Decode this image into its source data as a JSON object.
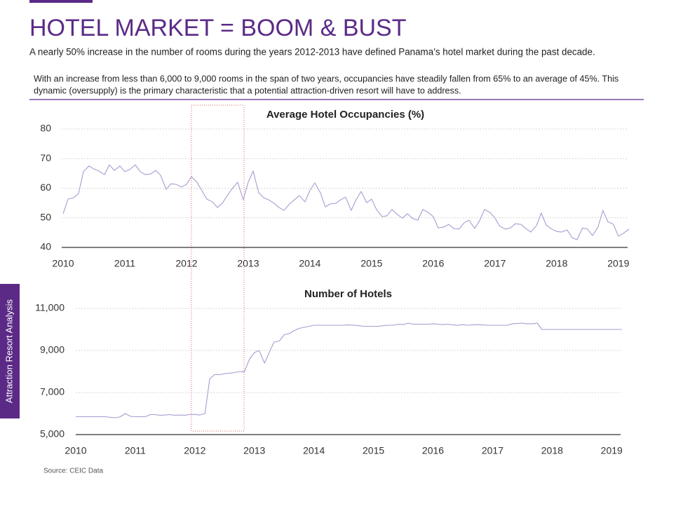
{
  "header": {
    "title": "HOTEL MARKET = BOOM & BUST",
    "subtitle": "A nearly 50% increase in the number of rooms during the years 2012-2013 have defined Panama’s hotel market during the past decade."
  },
  "body_text": [
    "With an increase from less than 6,000 to 9,000 rooms in the span of two years, occupancies have steadily fallen from 65% to an average of 45%.  This",
    "dynamic (oversupply) is the primary characteristic that a potential attraction-driven resort will have to address."
  ],
  "side_tab": "Attraction Resort Analysis",
  "source": "Source: CEIC Data",
  "chart_data": [
    {
      "type": "line",
      "title": "Average Hotel Occupancies (%)",
      "color": "#a99bd0",
      "grid": true,
      "xlim": [
        2010,
        2019.15
      ],
      "xticks": [
        2010,
        2011,
        2012,
        2013,
        2014,
        2015,
        2016,
        2017,
        2018,
        2019
      ],
      "ylim": [
        40,
        80
      ],
      "yticks": [
        40,
        50,
        60,
        70,
        80
      ],
      "x": [
        2010,
        2010.08,
        2010.17,
        2010.25,
        2010.33,
        2010.42,
        2010.5,
        2010.58,
        2010.67,
        2010.75,
        2010.83,
        2010.92,
        2011,
        2011.08,
        2011.17,
        2011.25,
        2011.33,
        2011.42,
        2011.5,
        2011.58,
        2011.67,
        2011.75,
        2011.83,
        2011.92,
        2012,
        2012.08,
        2012.17,
        2012.25,
        2012.33,
        2012.42,
        2012.5,
        2012.58,
        2012.67,
        2012.75,
        2012.83,
        2012.92,
        2013,
        2013.08,
        2013.17,
        2013.25,
        2013.33,
        2013.42,
        2013.5,
        2013.58,
        2013.67,
        2013.75,
        2013.83,
        2013.92,
        2014,
        2014.08,
        2014.17,
        2014.25,
        2014.33,
        2014.42,
        2014.5,
        2014.58,
        2014.67,
        2014.75,
        2014.83,
        2014.92,
        2015,
        2015.08,
        2015.17,
        2015.25,
        2015.33,
        2015.42,
        2015.5,
        2015.58,
        2015.67,
        2015.75,
        2015.83,
        2015.92,
        2016,
        2016.08,
        2016.17,
        2016.25,
        2016.33,
        2016.42,
        2016.5,
        2016.58,
        2016.67,
        2016.75,
        2016.83,
        2016.92,
        2017,
        2017.08,
        2017.17,
        2017.25,
        2017.33,
        2017.42,
        2017.5,
        2017.58,
        2017.67,
        2017.75,
        2017.83,
        2017.92,
        2018,
        2018.08,
        2018.17,
        2018.25,
        2018.33,
        2018.42,
        2018.5,
        2018.58,
        2018.67,
        2018.75,
        2018.83,
        2018.92,
        2019,
        2019.08,
        2019.17
      ],
      "values": [
        51.4,
        56.3,
        56.8,
        58.2,
        65.6,
        67.5,
        66.5,
        65.8,
        64.6,
        67.9,
        66.0,
        67.5,
        65.6,
        66.3,
        67.9,
        65.6,
        64.6,
        64.8,
        66.0,
        64.4,
        59.6,
        61.5,
        61.3,
        60.4,
        61.3,
        63.9,
        62.0,
        59.2,
        56.3,
        55.4,
        53.5,
        54.9,
        57.8,
        60.1,
        62.0,
        56.1,
        62.0,
        65.8,
        58.5,
        56.8,
        56.1,
        54.9,
        53.5,
        52.5,
        54.7,
        56.1,
        57.5,
        55.4,
        59.2,
        61.8,
        58.5,
        53.7,
        54.7,
        54.9,
        56.1,
        57.0,
        52.5,
        56.1,
        58.9,
        55.1,
        56.3,
        52.8,
        50.4,
        50.7,
        52.8,
        51.1,
        49.9,
        51.4,
        49.7,
        49.2,
        52.8,
        51.8,
        50.4,
        46.6,
        46.9,
        47.8,
        46.4,
        46.2,
        48.3,
        49.2,
        46.4,
        49.0,
        52.8,
        51.8,
        49.9,
        47.1,
        46.2,
        46.6,
        48.0,
        47.8,
        46.4,
        45.2,
        47.3,
        51.6,
        47.6,
        46.2,
        45.4,
        45.2,
        45.9,
        43.3,
        42.6,
        46.6,
        46.2,
        44.0,
        46.9,
        52.5,
        48.7,
        47.8,
        43.8,
        44.7,
        46.2
      ]
    },
    {
      "type": "line",
      "title": "Number of Hotels",
      "color": "#a99bd0",
      "grid": true,
      "xlim": [
        2010,
        2019.15
      ],
      "xticks": [
        2010,
        2011,
        2012,
        2013,
        2014,
        2015,
        2016,
        2017,
        2018,
        2019
      ],
      "ylim": [
        5000,
        11000
      ],
      "yticks": [
        {
          "value": 5000,
          "label": "5,000"
        },
        {
          "value": 7000,
          "label": "7,000"
        },
        {
          "value": 9000,
          "label": "9,000"
        },
        {
          "value": 11000,
          "label": "11,000"
        }
      ],
      "x": [
        2010,
        2010.08,
        2010.17,
        2010.25,
        2010.33,
        2010.42,
        2010.5,
        2010.58,
        2010.67,
        2010.75,
        2010.83,
        2010.92,
        2011,
        2011.08,
        2011.17,
        2011.25,
        2011.33,
        2011.42,
        2011.5,
        2011.58,
        2011.67,
        2011.75,
        2011.83,
        2011.92,
        2012,
        2012.08,
        2012.17,
        2012.25,
        2012.33,
        2012.42,
        2012.5,
        2012.58,
        2012.67,
        2012.75,
        2012.83,
        2012.92,
        2013,
        2013.08,
        2013.17,
        2013.25,
        2013.33,
        2013.42,
        2013.5,
        2013.58,
        2013.67,
        2013.75,
        2013.83,
        2013.92,
        2014,
        2014.08,
        2014.17,
        2014.25,
        2014.33,
        2014.42,
        2014.5,
        2014.58,
        2014.67,
        2014.75,
        2014.83,
        2014.92,
        2015,
        2015.08,
        2015.17,
        2015.25,
        2015.33,
        2015.42,
        2015.5,
        2015.58,
        2015.67,
        2015.75,
        2015.83,
        2015.92,
        2016,
        2016.08,
        2016.17,
        2016.25,
        2016.33,
        2016.42,
        2016.5,
        2016.58,
        2016.67,
        2016.75,
        2016.83,
        2016.92,
        2017,
        2017.08,
        2017.17,
        2017.25,
        2017.33,
        2017.42,
        2017.5,
        2017.58,
        2017.67,
        2017.75,
        2017.83,
        2017.92,
        2018,
        2018.08,
        2018.17,
        2018.25,
        2018.33,
        2018.42,
        2018.5,
        2018.58,
        2018.67,
        2018.75,
        2018.83,
        2018.92,
        2019,
        2019.08,
        2019.17
      ],
      "values": [
        5850,
        5850,
        5850,
        5850,
        5850,
        5850,
        5850,
        5820,
        5800,
        5850,
        6000,
        5870,
        5850,
        5850,
        5850,
        5950,
        5950,
        5920,
        5930,
        5950,
        5920,
        5930,
        5920,
        5960,
        5960,
        5930,
        6000,
        7650,
        7850,
        7850,
        7900,
        7920,
        7950,
        8000,
        7980,
        8600,
        8900,
        9000,
        8400,
        8900,
        9400,
        9450,
        9750,
        9800,
        9950,
        10050,
        10100,
        10150,
        10200,
        10200,
        10200,
        10200,
        10200,
        10200,
        10200,
        10220,
        10200,
        10180,
        10150,
        10150,
        10150,
        10150,
        10180,
        10200,
        10200,
        10250,
        10230,
        10300,
        10250,
        10250,
        10250,
        10250,
        10270,
        10250,
        10230,
        10250,
        10220,
        10200,
        10230,
        10200,
        10220,
        10230,
        10220,
        10200,
        10200,
        10200,
        10200,
        10200,
        10270,
        10280,
        10300,
        10270,
        10270,
        10300,
        10000,
        10000,
        10000,
        10000,
        10000,
        10000,
        10000,
        10000,
        10000,
        10000,
        10000,
        10000,
        10000,
        10000,
        10000,
        10000,
        10000
      ]
    }
  ]
}
